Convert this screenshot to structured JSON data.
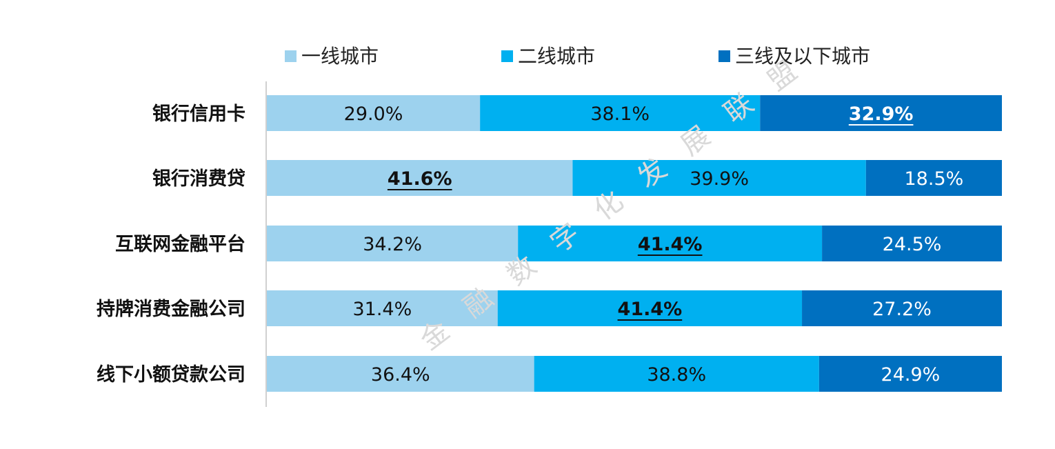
{
  "watermark": "金融数字化发展联盟",
  "chart_data": {
    "type": "bar",
    "orientation": "horizontal",
    "stacked": true,
    "percent_stacked": true,
    "categories": [
      "银行信用卡",
      "银行消费贷",
      "互联网金融平台",
      "持牌消费金融公司",
      "线下小额贷款公司"
    ],
    "series": [
      {
        "name": "一线城市",
        "color": "#9dd2ee",
        "values": [
          29.0,
          41.6,
          34.2,
          31.4,
          36.4
        ],
        "labels": [
          "29.0%",
          "41.6%",
          "34.2%",
          "31.4%",
          "36.4%"
        ]
      },
      {
        "name": "二线城市",
        "color": "#00b0f0",
        "values": [
          38.1,
          39.9,
          41.4,
          41.4,
          38.8
        ],
        "labels": [
          "38.1%",
          "39.9%",
          "41.4%",
          "41.4%",
          "38.8%"
        ]
      },
      {
        "name": "三线及以下城市",
        "color": "#0070c0",
        "values": [
          32.9,
          18.5,
          24.5,
          27.2,
          24.9
        ],
        "labels": [
          "32.9%",
          "18.5%",
          "24.5%",
          "27.2%",
          "24.9%"
        ]
      }
    ],
    "highlighted": [
      [
        0,
        2
      ],
      [
        1,
        0
      ],
      [
        2,
        1
      ],
      [
        3,
        1
      ]
    ],
    "xlim": [
      0,
      100
    ],
    "legend_position": "top",
    "grid": false
  }
}
